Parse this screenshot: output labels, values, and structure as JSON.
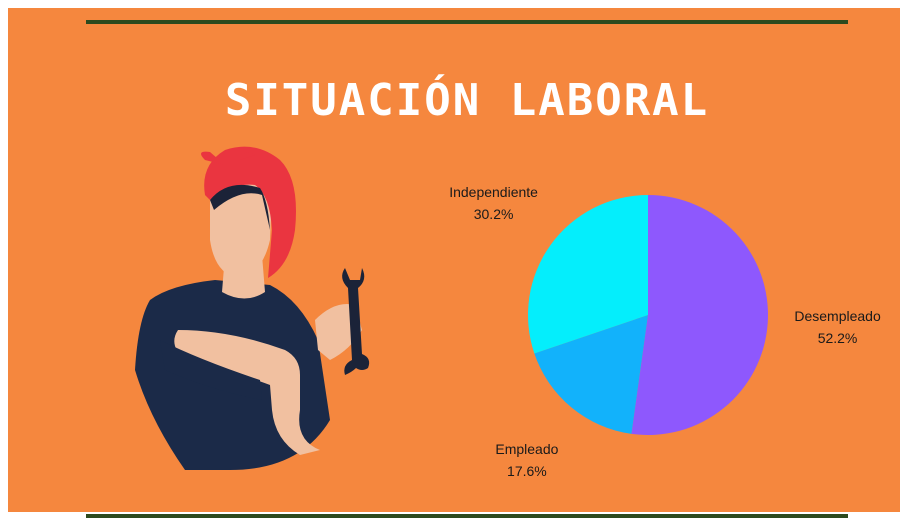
{
  "chart_data": {
    "type": "pie",
    "title": "SITUACIÓN LABORAL",
    "categories": [
      "Desempleado",
      "Empleado",
      "Independiente"
    ],
    "values": [
      52.2,
      17.6,
      30.2
    ],
    "value_labels": [
      "52.2%",
      "17.6%",
      "30.2%"
    ],
    "colors": [
      "#8e58fd",
      "#12b2fb",
      "#04eefc"
    ]
  }
}
